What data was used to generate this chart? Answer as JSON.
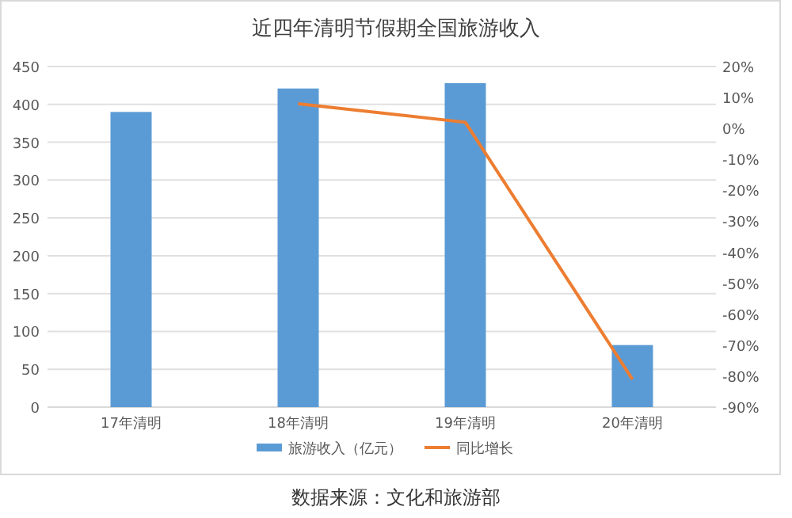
{
  "chart_data": {
    "type": "bar",
    "title": "近四年清明节假期全国旅游收入",
    "categories": [
      "17年清明",
      "18年清明",
      "19年清明",
      "20年清明"
    ],
    "series": [
      {
        "name": "旅游收入（亿元）",
        "color": "#5b9bd5",
        "values": [
          390,
          421,
          428,
          82
        ]
      },
      {
        "name": "同比增长",
        "type": "line",
        "axis": "y2",
        "color": "#ed7d31",
        "values": [
          null,
          8,
          2,
          -81
        ]
      }
    ],
    "ylim": [
      0,
      450
    ],
    "yticks": [
      0,
      50,
      100,
      150,
      200,
      250,
      300,
      350,
      400,
      450
    ],
    "y2lim": [
      -90,
      20
    ],
    "y2ticks": [
      {
        "value": -90,
        "label": "-90%"
      },
      {
        "value": -80,
        "label": "-80%"
      },
      {
        "value": -70,
        "label": "-70%"
      },
      {
        "value": -60,
        "label": "-60%"
      },
      {
        "value": -50,
        "label": "-50%"
      },
      {
        "value": -40,
        "label": "-40%"
      },
      {
        "value": -30,
        "label": "-30%"
      },
      {
        "value": -20,
        "label": "-20%"
      },
      {
        "value": -10,
        "label": "-10%"
      },
      {
        "value": 0,
        "label": "0%"
      },
      {
        "value": 10,
        "label": "10%"
      },
      {
        "value": 20,
        "label": "20%"
      }
    ],
    "grid": "y",
    "legend": "bottom",
    "marker": "none",
    "line_style": "solid",
    "annotations": [
      "数据来源：文化和旅游部"
    ]
  }
}
